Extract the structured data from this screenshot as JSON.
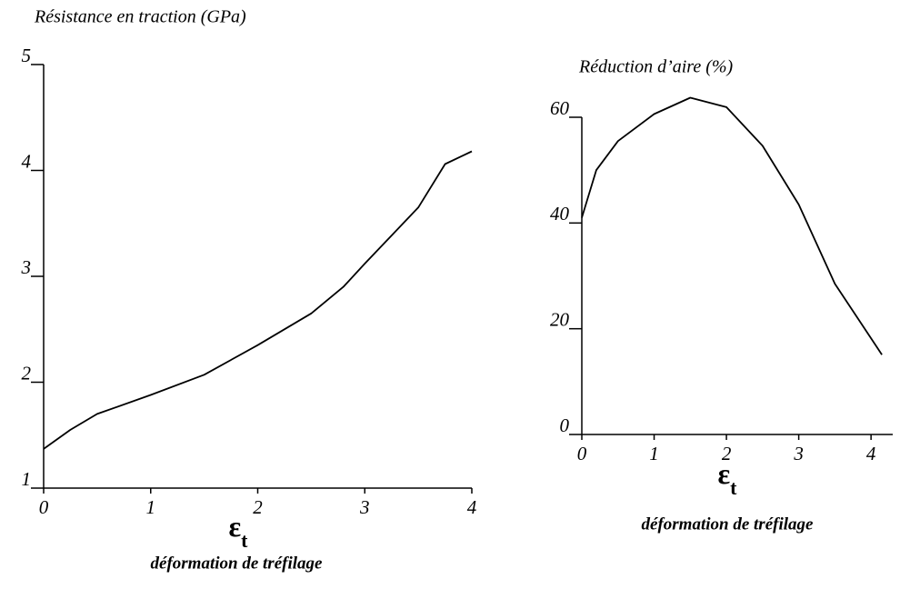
{
  "chart_data": [
    {
      "type": "line",
      "title": "Résistance en traction (GPa)",
      "x_symbol": "ε",
      "x_symbol_sub": "t",
      "xlabel": "déformation de tréfilage",
      "series": [
        {
          "color": "#000000",
          "x": [
            0,
            0.25,
            0.5,
            1,
            1.5,
            2,
            2.5,
            2.8,
            3,
            3.5,
            3.75,
            4
          ],
          "values": [
            1.37,
            1.55,
            1.7,
            1.88,
            2.07,
            2.35,
            2.65,
            2.9,
            3.12,
            3.65,
            4.06,
            4.18
          ]
        }
      ],
      "xlim": [
        0,
        4
      ],
      "ylim": [
        1,
        5
      ],
      "xticks": [
        0,
        1,
        2,
        3,
        4
      ],
      "yticks": [
        1,
        2,
        3,
        4,
        5
      ]
    },
    {
      "type": "line",
      "title": "Réduction d’aire (%)",
      "x_symbol": "ε",
      "x_symbol_sub": "t",
      "xlabel": "déformation de tréfilage",
      "series": [
        {
          "color": "#000000",
          "x": [
            0,
            0.2,
            0.5,
            1,
            1.5,
            2,
            2.5,
            3,
            3.5,
            4.15
          ],
          "values": [
            41,
            50,
            55.5,
            60.6,
            63.7,
            61.9,
            54.6,
            43.5,
            28.5,
            15.1
          ]
        }
      ],
      "xlim": [
        0,
        4.3
      ],
      "ylim": [
        0,
        60
      ],
      "xticks": [
        0,
        1,
        2,
        3,
        4
      ],
      "yticks": [
        0,
        20,
        40,
        60
      ]
    }
  ]
}
